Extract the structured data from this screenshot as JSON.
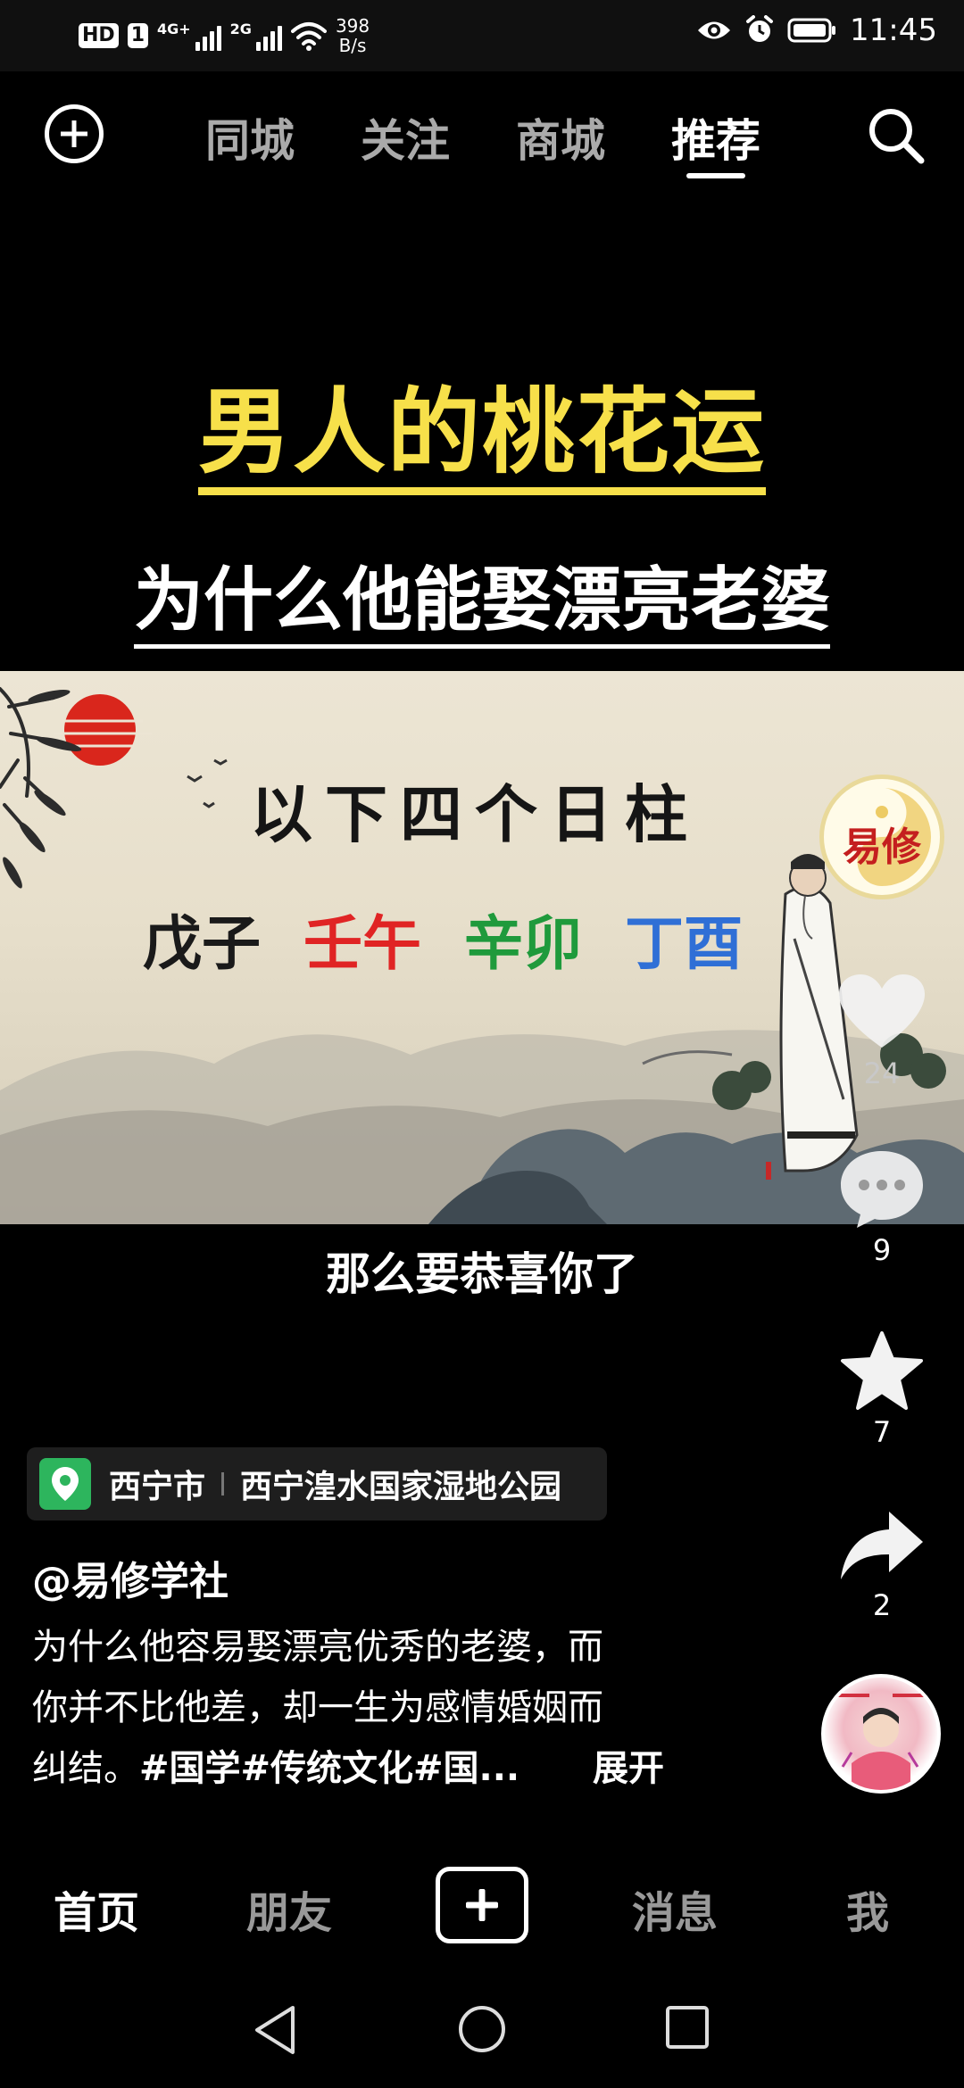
{
  "status_bar": {
    "hd_badge": "HD",
    "sim_badge": "1",
    "net_4g": "4G+",
    "net_2g": "2G",
    "speed_value": "398",
    "speed_unit": "B/s",
    "time": "11:45"
  },
  "top_nav": {
    "tabs": [
      {
        "label": "同城",
        "active": false
      },
      {
        "label": "关注",
        "active": false
      },
      {
        "label": "商城",
        "active": false
      },
      {
        "label": "推荐",
        "active": true
      }
    ]
  },
  "video": {
    "title": "男人的桃花运",
    "subtitle": "为什么他能娶漂亮老婆",
    "verse": "以下四个日柱",
    "pillars": [
      {
        "text": "戊子",
        "color": "#1a1a1a"
      },
      {
        "text": "壬午",
        "color": "#e02424"
      },
      {
        "text": "辛卯",
        "color": "#1f9a3c"
      },
      {
        "text": "丁酉",
        "color": "#2f6fd6"
      }
    ],
    "caption": "那么要恭喜你了",
    "logo_text": "易修"
  },
  "actions": {
    "likes": "24",
    "comments": "9",
    "favorites": "7",
    "shares": "2"
  },
  "location": {
    "city": "西宁市",
    "place": "西宁湟水国家湿地公园"
  },
  "post": {
    "author": "@易修学社",
    "desc_line1": "为什么他容易娶漂亮优秀的老婆，而",
    "desc_line2": "你并不比他差，却一生为感情婚姻而",
    "desc_line3_prefix": "纠结。",
    "desc_tags": "#国学#传统文化#国...",
    "expand_label": "展开"
  },
  "bottom_nav": {
    "home": "首页",
    "friends": "朋友",
    "messages": "消息",
    "me": "我"
  },
  "colors": {
    "title_yellow": "#f7e04a",
    "location_green": "#2db55d"
  }
}
